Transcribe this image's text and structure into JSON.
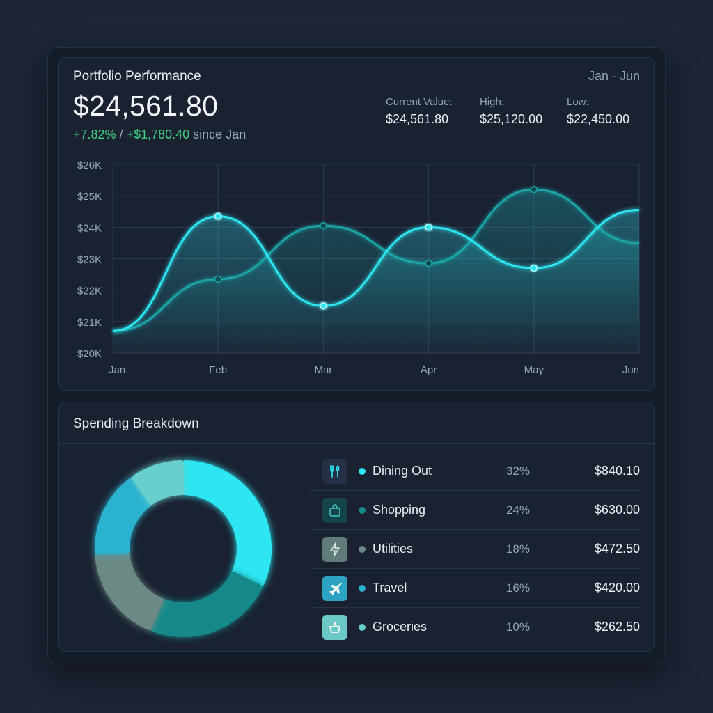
{
  "portfolio": {
    "title": "Portfolio Performance",
    "range": "Jan - Jun",
    "value": "$24,561.80",
    "change_pct": "+7.82%",
    "change_sep": " / ",
    "change_amount": "+$1,780.40",
    "change_suffix": " since Jan",
    "stats": {
      "current_label": "Current Value:",
      "current_value": "$24,561.80",
      "high_label": "High:",
      "high_value": "$25,120.00",
      "low_label": "Low:",
      "low_value": "$22,450.00"
    }
  },
  "chart_data": {
    "type": "line",
    "categories": [
      "Jan",
      "Feb",
      "Mar",
      "Apr",
      "May",
      "Jun"
    ],
    "y_ticks": [
      "$20K",
      "$21K",
      "$22K",
      "$23K",
      "$24K",
      "$25K",
      "$26K"
    ],
    "ylim": [
      20000,
      26000
    ],
    "grid": true,
    "series": [
      {
        "values": [
          20700,
          24350,
          21500,
          24000,
          22700,
          24550
        ],
        "color": "#2ee6f2"
      },
      {
        "values": [
          20700,
          22350,
          24050,
          22850,
          25200,
          23500
        ],
        "color": "#1aa6a8"
      }
    ]
  },
  "spending": {
    "title": "Spending Breakdown",
    "items": [
      {
        "name": "Dining Out",
        "pct": "32%",
        "share": 32,
        "amount": "$840.10",
        "icon": "fork-knife-icon",
        "color": "#2ee6f2",
        "icon_bg": "#233046"
      },
      {
        "name": "Shopping",
        "pct": "24%",
        "share": 24,
        "amount": "$630.00",
        "icon": "shopping-bag-icon",
        "color": "#138a8a",
        "icon_bg": "#124449"
      },
      {
        "name": "Utilities",
        "pct": "18%",
        "share": 18,
        "amount": "$472.50",
        "icon": "lightning-icon",
        "color": "#6c8a85",
        "icon_bg": "#5f7c7a"
      },
      {
        "name": "Travel",
        "pct": "16%",
        "share": 16,
        "amount": "$420.00",
        "icon": "airplane-icon",
        "color": "#2ab2cf",
        "icon_bg": "#2ca3c2"
      },
      {
        "name": "Groceries",
        "pct": "10%",
        "share": 10,
        "amount": "$262.50",
        "icon": "grocery-basket-icon",
        "color": "#67cfcc",
        "icon_bg": "#6ac9c6"
      }
    ]
  }
}
